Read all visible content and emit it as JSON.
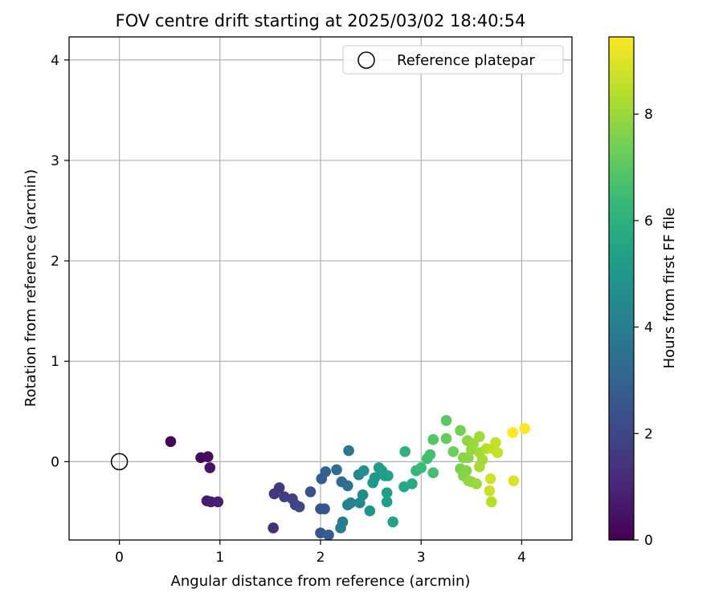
{
  "chart_data": {
    "type": "scatter",
    "title": "FOV centre drift starting at 2025/03/02 18:40:54",
    "xlabel": "Angular distance from reference (arcmin)",
    "ylabel": "Rotation from reference (arcmin)",
    "xlim": [
      -0.5,
      4.5
    ],
    "ylim": [
      -0.78,
      4.23
    ],
    "x_ticks": [
      0,
      1,
      2,
      3,
      4
    ],
    "y_ticks": [
      0,
      1,
      2,
      3,
      4
    ],
    "grid": true,
    "legend": {
      "placement": "top-right",
      "entries": [
        "Reference platepar"
      ]
    },
    "reference_point": {
      "x": 0,
      "y": 0,
      "label": "Reference platepar"
    },
    "colorbar": {
      "label": "Hours from first FF file",
      "range": [
        0,
        9.45
      ],
      "ticks": [
        0,
        2,
        4,
        6,
        8
      ],
      "colormap": "viridis",
      "colormap_stops": [
        "#440154",
        "#482878",
        "#3e4989",
        "#31688e",
        "#26828e",
        "#1f9e89",
        "#35b779",
        "#6ece58",
        "#b5de2b",
        "#fde725"
      ]
    },
    "points": [
      {
        "x": 0.51,
        "y": 0.2,
        "t": 0.1
      },
      {
        "x": 0.81,
        "y": 0.04,
        "t": 0.2
      },
      {
        "x": 0.88,
        "y": 0.05,
        "t": 0.3
      },
      {
        "x": 0.9,
        "y": -0.06,
        "t": 0.5
      },
      {
        "x": 0.87,
        "y": -0.39,
        "t": 0.65
      },
      {
        "x": 0.91,
        "y": -0.4,
        "t": 0.75
      },
      {
        "x": 0.98,
        "y": -0.4,
        "t": 0.85
      },
      {
        "x": 1.53,
        "y": -0.66,
        "t": 1.3
      },
      {
        "x": 1.54,
        "y": -0.32,
        "t": 1.5
      },
      {
        "x": 1.59,
        "y": -0.26,
        "t": 1.6
      },
      {
        "x": 1.64,
        "y": -0.35,
        "t": 1.7
      },
      {
        "x": 1.72,
        "y": -0.37,
        "t": 1.8
      },
      {
        "x": 1.75,
        "y": -0.43,
        "t": 1.9
      },
      {
        "x": 1.79,
        "y": -0.45,
        "t": 2.0
      },
      {
        "x": 1.9,
        "y": -0.3,
        "t": 2.4
      },
      {
        "x": 2.0,
        "y": -0.47,
        "t": 2.5
      },
      {
        "x": 2.04,
        "y": -0.47,
        "t": 2.55
      },
      {
        "x": 2.01,
        "y": -0.17,
        "t": 2.8
      },
      {
        "x": 2.05,
        "y": -0.1,
        "t": 2.9
      },
      {
        "x": 2.0,
        "y": -0.71,
        "t": 2.6
      },
      {
        "x": 2.08,
        "y": -0.73,
        "t": 2.7
      },
      {
        "x": 2.16,
        "y": -0.08,
        "t": 3.3
      },
      {
        "x": 2.21,
        "y": -0.2,
        "t": 3.4
      },
      {
        "x": 2.27,
        "y": -0.24,
        "t": 3.5
      },
      {
        "x": 2.28,
        "y": 0.11,
        "t": 3.8
      },
      {
        "x": 2.2,
        "y": -0.66,
        "t": 4.0
      },
      {
        "x": 2.22,
        "y": -0.6,
        "t": 4.05
      },
      {
        "x": 2.27,
        "y": -0.43,
        "t": 4.1
      },
      {
        "x": 2.3,
        "y": -0.41,
        "t": 4.2
      },
      {
        "x": 2.39,
        "y": -0.41,
        "t": 4.3
      },
      {
        "x": 2.38,
        "y": -0.13,
        "t": 4.3
      },
      {
        "x": 2.42,
        "y": -0.33,
        "t": 4.5
      },
      {
        "x": 2.43,
        "y": -0.09,
        "t": 4.7
      },
      {
        "x": 2.49,
        "y": -0.49,
        "t": 4.9
      },
      {
        "x": 2.52,
        "y": -0.21,
        "t": 5.0
      },
      {
        "x": 2.54,
        "y": -0.16,
        "t": 5.0
      },
      {
        "x": 2.58,
        "y": -0.06,
        "t": 5.1
      },
      {
        "x": 2.61,
        "y": -0.09,
        "t": 5.2
      },
      {
        "x": 2.64,
        "y": -0.14,
        "t": 5.3
      },
      {
        "x": 2.67,
        "y": -0.14,
        "t": 5.35
      },
      {
        "x": 2.66,
        "y": -0.31,
        "t": 5.3
      },
      {
        "x": 2.66,
        "y": -0.4,
        "t": 5.25
      },
      {
        "x": 2.72,
        "y": -0.6,
        "t": 5.4
      },
      {
        "x": 2.83,
        "y": -0.25,
        "t": 5.6
      },
      {
        "x": 2.91,
        "y": -0.22,
        "t": 5.7
      },
      {
        "x": 2.84,
        "y": 0.1,
        "t": 6.0
      },
      {
        "x": 2.95,
        "y": -0.09,
        "t": 6.3
      },
      {
        "x": 3.0,
        "y": -0.06,
        "t": 6.4
      },
      {
        "x": 3.06,
        "y": 0.03,
        "t": 6.5
      },
      {
        "x": 3.09,
        "y": 0.07,
        "t": 6.6
      },
      {
        "x": 3.12,
        "y": -0.11,
        "t": 6.6
      },
      {
        "x": 3.12,
        "y": 0.22,
        "t": 6.9
      },
      {
        "x": 3.25,
        "y": 0.41,
        "t": 7.0
      },
      {
        "x": 3.25,
        "y": 0.23,
        "t": 7.2
      },
      {
        "x": 3.32,
        "y": 0.1,
        "t": 7.3
      },
      {
        "x": 3.39,
        "y": 0.31,
        "t": 7.4
      },
      {
        "x": 3.39,
        "y": -0.07,
        "t": 7.5
      },
      {
        "x": 3.42,
        "y": -0.14,
        "t": 7.6
      },
      {
        "x": 3.42,
        "y": 0.04,
        "t": 7.7
      },
      {
        "x": 3.45,
        "y": -0.09,
        "t": 7.7
      },
      {
        "x": 3.46,
        "y": 0.21,
        "t": 7.8
      },
      {
        "x": 3.47,
        "y": 0.04,
        "t": 7.8
      },
      {
        "x": 3.47,
        "y": -0.19,
        "t": 7.9
      },
      {
        "x": 3.5,
        "y": 0.12,
        "t": 7.9
      },
      {
        "x": 3.5,
        "y": -0.2,
        "t": 7.9
      },
      {
        "x": 3.52,
        "y": 0.18,
        "t": 8.0
      },
      {
        "x": 3.55,
        "y": -0.22,
        "t": 8.0
      },
      {
        "x": 3.58,
        "y": 0.25,
        "t": 8.1
      },
      {
        "x": 3.58,
        "y": 0.09,
        "t": 8.1
      },
      {
        "x": 3.58,
        "y": -0.05,
        "t": 8.2
      },
      {
        "x": 3.61,
        "y": 0.02,
        "t": 8.2
      },
      {
        "x": 3.65,
        "y": 0.13,
        "t": 8.4
      },
      {
        "x": 3.7,
        "y": -0.4,
        "t": 8.4
      },
      {
        "x": 3.72,
        "y": 0.13,
        "t": 8.5
      },
      {
        "x": 3.74,
        "y": 0.19,
        "t": 8.6
      },
      {
        "x": 3.76,
        "y": 0.09,
        "t": 8.6
      },
      {
        "x": 3.68,
        "y": -0.29,
        "t": 8.7
      },
      {
        "x": 3.69,
        "y": -0.17,
        "t": 8.8
      },
      {
        "x": 3.91,
        "y": 0.29,
        "t": 9.4
      },
      {
        "x": 4.03,
        "y": 0.33,
        "t": 9.4
      },
      {
        "x": 3.92,
        "y": -0.19,
        "t": 8.9
      }
    ]
  }
}
